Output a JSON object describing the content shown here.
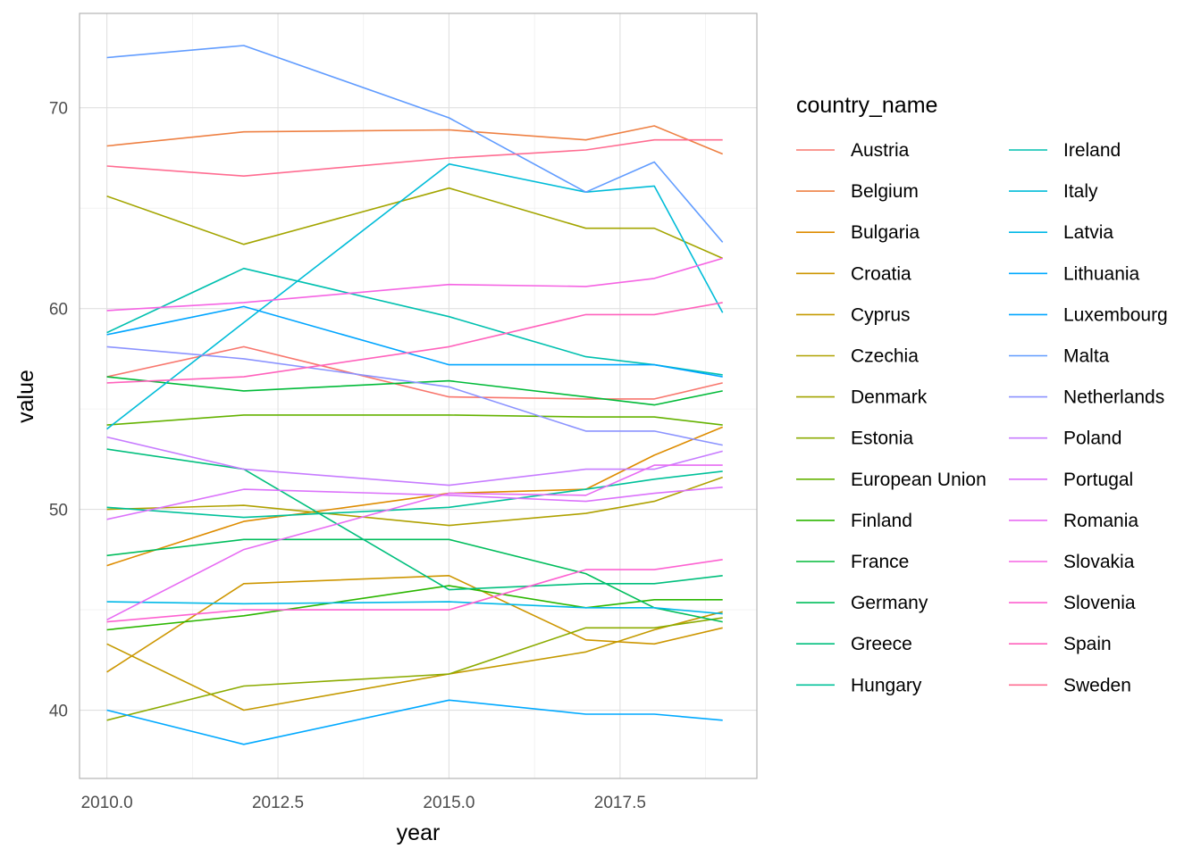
{
  "chart_data": {
    "type": "line",
    "xlabel": "year",
    "ylabel": "value",
    "legend_title": "country_name",
    "legend_position": "right",
    "grid": true,
    "xlim": [
      2009.6,
      2019.5
    ],
    "ylim": [
      36.6,
      74.7
    ],
    "x_ticks": [
      2010,
      2012.5,
      2015,
      2017.5
    ],
    "x_tick_labels": [
      "2010.0",
      "2012.5",
      "2015.0",
      "2017.5"
    ],
    "y_ticks": [
      40,
      50,
      60,
      70
    ],
    "y_tick_labels": [
      "40",
      "50",
      "60",
      "70"
    ],
    "x": [
      2010,
      2012,
      2015,
      2017,
      2018,
      2019
    ],
    "series": [
      {
        "name": "Austria",
        "color": "#F8766D",
        "values": [
          56.6,
          58.1,
          55.6,
          55.5,
          55.5,
          56.3
        ]
      },
      {
        "name": "Belgium",
        "color": "#EE8043",
        "values": [
          68.1,
          68.8,
          68.9,
          68.4,
          69.1,
          67.7
        ]
      },
      {
        "name": "Bulgaria",
        "color": "#DE8C00",
        "values": [
          47.2,
          49.4,
          50.8,
          51.0,
          52.7,
          54.1
        ]
      },
      {
        "name": "Croatia",
        "color": "#CD9600",
        "values": [
          41.9,
          46.3,
          46.7,
          43.5,
          43.3,
          44.1
        ]
      },
      {
        "name": "Cyprus",
        "color": "#C49A00",
        "values": [
          43.3,
          40.0,
          41.8,
          42.9,
          44.0,
          44.9
        ]
      },
      {
        "name": "Czechia",
        "color": "#AFA100",
        "values": [
          50.0,
          50.2,
          49.2,
          49.8,
          50.4,
          51.6
        ]
      },
      {
        "name": "Denmark",
        "color": "#A3A500",
        "values": [
          65.6,
          63.2,
          66.0,
          64.0,
          64.0,
          62.5
        ]
      },
      {
        "name": "Estonia",
        "color": "#8CAB00",
        "values": [
          39.5,
          41.2,
          41.8,
          44.1,
          44.1,
          44.6
        ]
      },
      {
        "name": "European Union",
        "color": "#64B200",
        "values": [
          54.2,
          54.7,
          54.7,
          54.6,
          54.6,
          54.2
        ]
      },
      {
        "name": "Finland",
        "color": "#2BB600",
        "values": [
          44.0,
          44.7,
          46.2,
          45.1,
          45.5,
          45.5
        ]
      },
      {
        "name": "France",
        "color": "#00BA38",
        "values": [
          56.6,
          55.9,
          56.4,
          55.6,
          55.2,
          55.9
        ]
      },
      {
        "name": "Germany",
        "color": "#00BD5C",
        "values": [
          47.7,
          48.5,
          48.5,
          46.8,
          45.1,
          44.4
        ]
      },
      {
        "name": "Greece",
        "color": "#00BF7D",
        "values": [
          53.0,
          52.0,
          46.0,
          46.3,
          46.3,
          46.7
        ]
      },
      {
        "name": "Hungary",
        "color": "#00C19A",
        "values": [
          50.1,
          49.6,
          50.1,
          51.0,
          51.5,
          51.9
        ]
      },
      {
        "name": "Ireland",
        "color": "#00C0AF",
        "values": [
          58.8,
          62.0,
          59.6,
          57.6,
          57.2,
          56.7
        ]
      },
      {
        "name": "Italy",
        "color": "#00BCD8",
        "values": [
          54.0,
          59.3,
          67.2,
          65.8,
          66.1,
          59.8
        ]
      },
      {
        "name": "Latvia",
        "color": "#00B8E7",
        "values": [
          45.4,
          45.3,
          45.4,
          45.1,
          45.1,
          44.8
        ]
      },
      {
        "name": "Lithuania",
        "color": "#00A9FF",
        "values": [
          40.0,
          38.3,
          40.5,
          39.8,
          39.8,
          39.5
        ]
      },
      {
        "name": "Luxembourg",
        "color": "#00A5FF",
        "values": [
          58.7,
          60.1,
          57.2,
          57.2,
          57.2,
          56.6
        ]
      },
      {
        "name": "Malta",
        "color": "#619CFF",
        "values": [
          72.5,
          73.1,
          69.5,
          65.8,
          67.3,
          63.3
        ]
      },
      {
        "name": "Netherlands",
        "color": "#8B93FF",
        "values": [
          58.1,
          57.5,
          56.1,
          53.9,
          53.9,
          53.2
        ]
      },
      {
        "name": "Poland",
        "color": "#C77CFF",
        "values": [
          53.6,
          52.0,
          51.2,
          52.0,
          52.0,
          52.9
        ]
      },
      {
        "name": "Portugal",
        "color": "#DB72FB",
        "values": [
          49.5,
          51.0,
          50.7,
          50.4,
          50.8,
          51.1
        ]
      },
      {
        "name": "Romania",
        "color": "#E76BF3",
        "values": [
          44.5,
          48.0,
          50.8,
          50.7,
          52.2,
          52.2
        ]
      },
      {
        "name": "Slovakia",
        "color": "#F564E3",
        "values": [
          59.9,
          60.3,
          61.2,
          61.1,
          61.5,
          62.5
        ]
      },
      {
        "name": "Slovenia",
        "color": "#FD61D1",
        "values": [
          44.4,
          45.0,
          45.0,
          47.0,
          47.0,
          47.5
        ]
      },
      {
        "name": "Spain",
        "color": "#FF62BC",
        "values": [
          56.3,
          56.6,
          58.1,
          59.7,
          59.7,
          60.3
        ]
      },
      {
        "name": "Sweden",
        "color": "#FF6C91",
        "values": [
          67.1,
          66.6,
          67.5,
          67.9,
          68.4,
          68.4
        ]
      }
    ]
  }
}
